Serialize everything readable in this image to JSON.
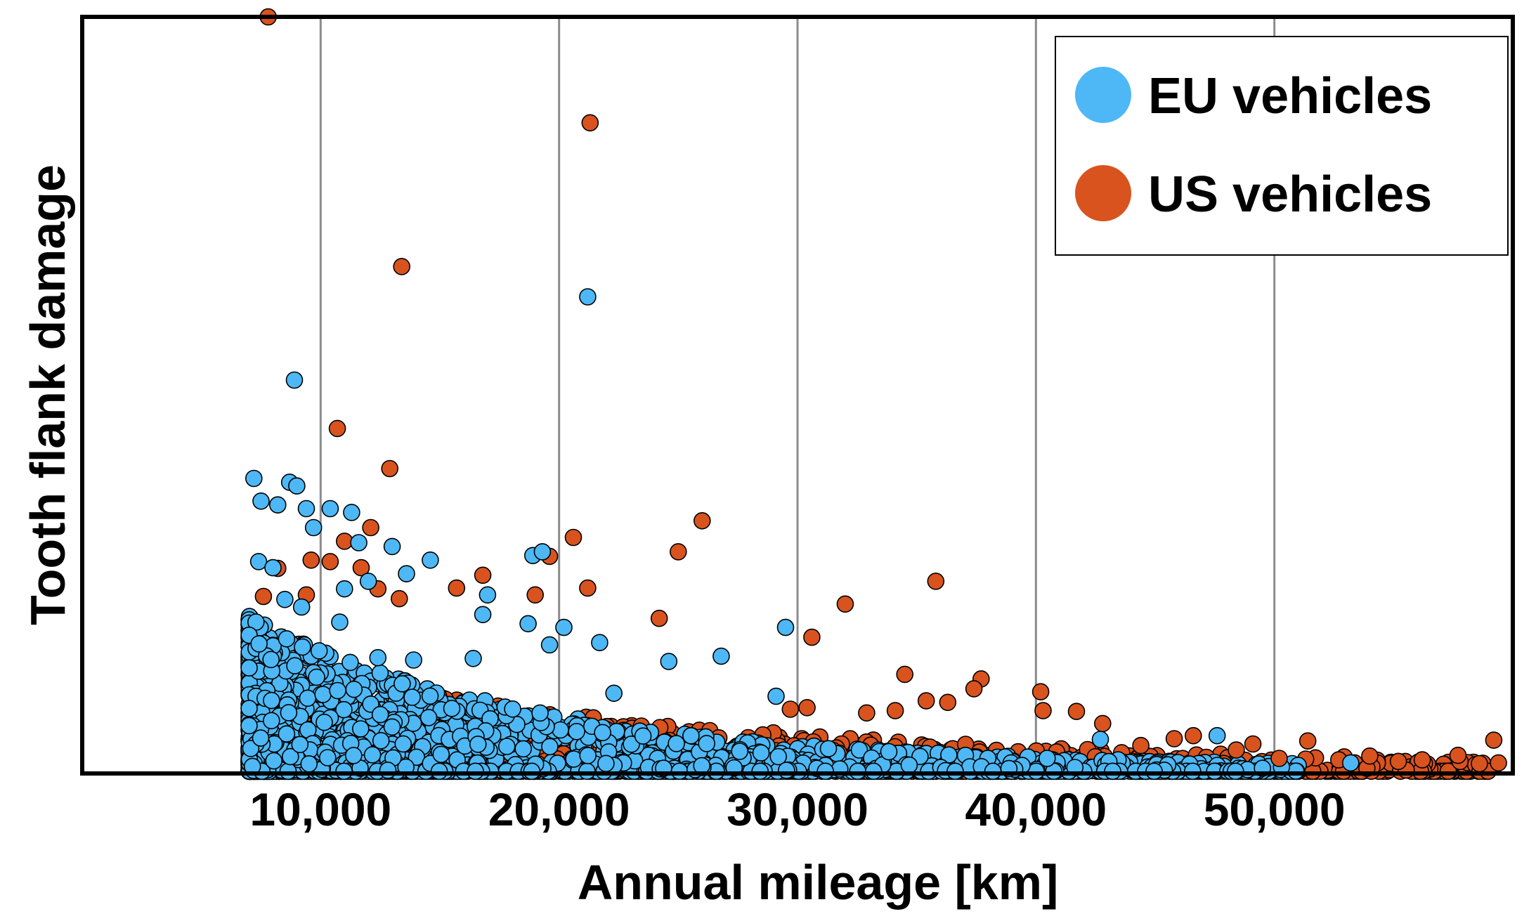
{
  "chart_data": {
    "type": "scatter",
    "title": "",
    "xlabel": "Annual mileage [km]",
    "ylabel": "Tooth flank damage",
    "xlim": [
      0,
      60000
    ],
    "ylim": [
      0,
      100
    ],
    "x_ticks": [
      10000,
      20000,
      30000,
      40000,
      50000
    ],
    "x_tick_labels": [
      "10,000",
      "20,000",
      "30,000",
      "40,000",
      "50,000"
    ],
    "grid": "vertical",
    "legend_position": "top-right",
    "series": [
      {
        "name": "EU vehicles",
        "color": "#4db8f5",
        "points": [
          [
            8900,
            52
          ],
          [
            7200,
            39
          ],
          [
            21200,
            63
          ],
          [
            7500,
            36
          ],
          [
            8200,
            35.5
          ],
          [
            8700,
            38.5
          ],
          [
            9000,
            38
          ],
          [
            9400,
            35
          ],
          [
            9700,
            32.5
          ],
          [
            10400,
            35
          ],
          [
            11300,
            34.5
          ],
          [
            11600,
            30.5
          ],
          [
            13000,
            30
          ],
          [
            18900,
            28.8
          ],
          [
            19300,
            29.3
          ],
          [
            7400,
            28
          ],
          [
            8000,
            27.2
          ],
          [
            14600,
            28.2
          ],
          [
            13600,
            26.4
          ],
          [
            17000,
            23.6
          ],
          [
            11000,
            24.4
          ],
          [
            12000,
            25.4
          ],
          [
            8500,
            23
          ],
          [
            9200,
            22
          ],
          [
            10800,
            20
          ],
          [
            18700,
            19.8
          ],
          [
            29500,
            19.3
          ],
          [
            16800,
            21
          ],
          [
            26800,
            15.5
          ],
          [
            24600,
            14.8
          ],
          [
            47600,
            5
          ],
          [
            29100,
            10.2
          ],
          [
            19600,
            17
          ],
          [
            20200,
            19.3
          ],
          [
            21700,
            17.3
          ],
          [
            22300,
            10.6
          ],
          [
            15500,
            8.6
          ],
          [
            16400,
            15.2
          ],
          [
            13900,
            15
          ],
          [
            12400,
            15.3
          ],
          [
            53200,
            1.4
          ],
          [
            42700,
            4.5
          ]
        ]
      },
      {
        "name": "US vehicles",
        "color": "#d9531e",
        "points": [
          [
            7800,
            100
          ],
          [
            21300,
            86
          ],
          [
            13400,
            67
          ],
          [
            10700,
            45.6
          ],
          [
            12900,
            40.3
          ],
          [
            26000,
            33.4
          ],
          [
            12100,
            32.5
          ],
          [
            20600,
            31.2
          ],
          [
            25000,
            29.3
          ],
          [
            19600,
            28.7
          ],
          [
            35800,
            25.4
          ],
          [
            32000,
            22.4
          ],
          [
            30600,
            18
          ],
          [
            16800,
            26.2
          ],
          [
            12400,
            24.4
          ],
          [
            15700,
            24.5
          ],
          [
            11700,
            27.2
          ],
          [
            10400,
            28
          ],
          [
            8200,
            27.1
          ],
          [
            21200,
            24.5
          ],
          [
            11000,
            30.7
          ],
          [
            9600,
            28.2
          ],
          [
            7600,
            23.4
          ],
          [
            13300,
            23.1
          ],
          [
            19000,
            23.6
          ],
          [
            24200,
            20.5
          ],
          [
            9400,
            23.6
          ],
          [
            34500,
            13.1
          ],
          [
            37700,
            12.5
          ],
          [
            37400,
            11.2
          ],
          [
            40200,
            10.8
          ],
          [
            35400,
            9.6
          ],
          [
            36300,
            9.4
          ],
          [
            34100,
            8.3
          ],
          [
            40300,
            8.3
          ],
          [
            41700,
            8.2
          ],
          [
            32900,
            8
          ],
          [
            30400,
            8.7
          ],
          [
            29700,
            8.5
          ],
          [
            42800,
            6.6
          ],
          [
            45800,
            4.6
          ],
          [
            46600,
            5
          ],
          [
            49100,
            3.9
          ],
          [
            51400,
            4.3
          ],
          [
            59200,
            4.4
          ],
          [
            57700,
            2.4
          ],
          [
            59400,
            1.4
          ],
          [
            58600,
            1.3
          ],
          [
            56200,
            1.8
          ],
          [
            55200,
            1.6
          ],
          [
            54000,
            2.3
          ],
          [
            52700,
            1.8
          ],
          [
            50200,
            2
          ],
          [
            48400,
            3.1
          ],
          [
            44400,
            3.7
          ]
        ]
      }
    ]
  },
  "legend": {
    "items": [
      {
        "label": "EU vehicles",
        "color": "#4db8f5"
      },
      {
        "label": "US vehicles",
        "color": "#d9531e"
      }
    ]
  },
  "colors": {
    "eu": "#4db8f5",
    "us": "#d9531e",
    "grid": "#8c8c8c",
    "frame": "#000000"
  }
}
